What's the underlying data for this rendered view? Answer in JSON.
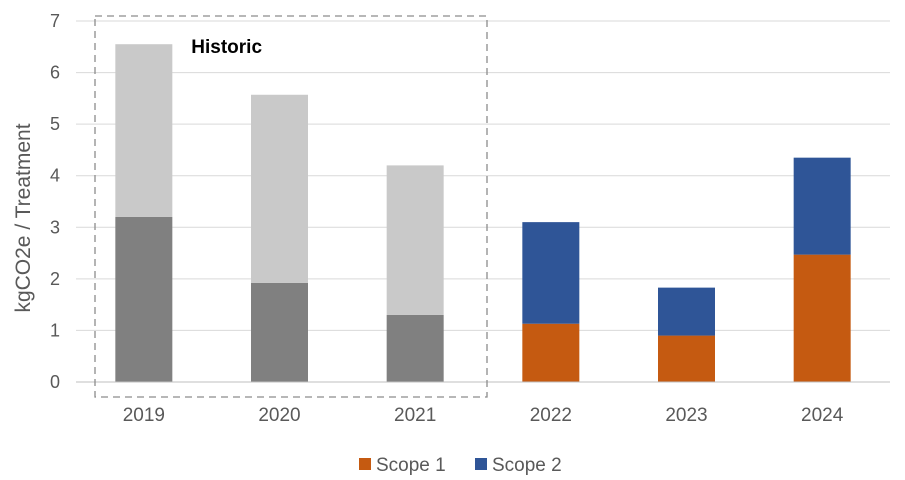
{
  "chart_data": {
    "type": "bar",
    "stacked": true,
    "categories": [
      "2019",
      "2020",
      "2021",
      "2022",
      "2023",
      "2024"
    ],
    "ylabel": "kgCO2e / Treatment",
    "ylim": [
      0,
      7
    ],
    "yticks": [
      "0",
      "1",
      "2",
      "3",
      "4",
      "5",
      "6",
      "7"
    ],
    "grid": true,
    "legend_position": "bottom",
    "annotation": "Historic",
    "historic_categories": [
      "2019",
      "2020",
      "2021"
    ],
    "series": [
      {
        "name": "Scope 1",
        "color": "#c55a11",
        "historic_color": "#808080",
        "values": [
          3.2,
          1.92,
          1.3,
          1.13,
          0.9,
          2.47
        ]
      },
      {
        "name": "Scope 2",
        "color": "#2f5597",
        "historic_color": "#c9c9c9",
        "values": [
          3.35,
          3.65,
          2.9,
          1.97,
          0.93,
          1.88
        ]
      }
    ]
  }
}
